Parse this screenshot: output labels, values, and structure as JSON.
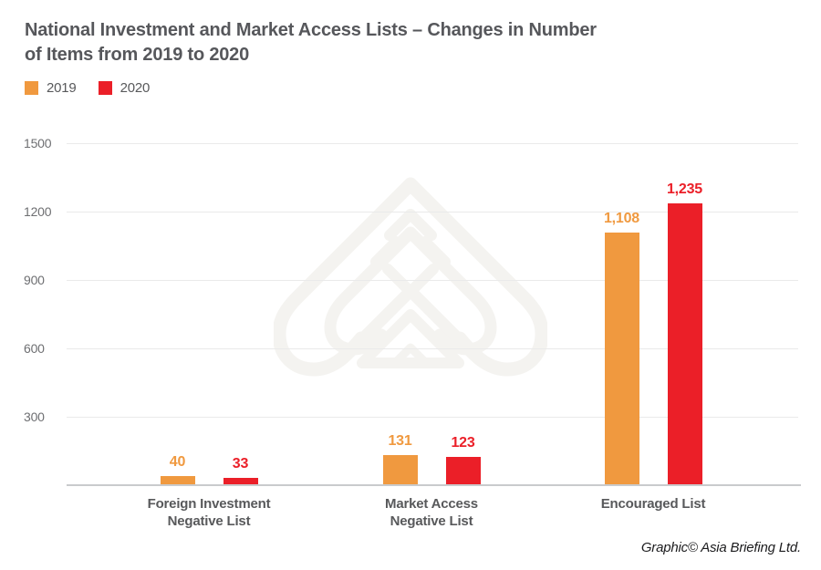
{
  "title": "National Investment and Market Access Lists – Changes in Number\nof Items from 2019 to 2020",
  "legend": {
    "items": [
      {
        "label": "2019",
        "color": "#F0993F"
      },
      {
        "label": "2020",
        "color": "#EB1F28"
      }
    ]
  },
  "chart_data": {
    "type": "bar",
    "categories": [
      "Foreign Investment\nNegative List",
      "Market Access\nNegative List",
      "Encouraged List"
    ],
    "series": [
      {
        "name": "2019",
        "color": "#F0993F",
        "values": [
          40,
          131,
          1108
        ],
        "value_labels": [
          "40",
          "131",
          "1,108"
        ]
      },
      {
        "name": "2020",
        "color": "#EB1F28",
        "values": [
          33,
          123,
          1235
        ],
        "value_labels": [
          "33",
          "123",
          "1,235"
        ]
      }
    ],
    "y_ticks": [
      300,
      600,
      900,
      1200,
      1500
    ],
    "ylim": [
      0,
      1500
    ],
    "grid": true,
    "legend_position": "top-left",
    "title": "National Investment and Market Access Lists – Changes in Number of Items from 2019 to 2020"
  },
  "colors": {
    "title_text": "#56575B",
    "axis_text": "#6E6F72",
    "category_text": "#58595B",
    "gridline": "#EAEAEA",
    "axis_line": "#C9CBCD",
    "watermark": "#F4F3F0"
  },
  "credit": "Graphic© Asia Briefing Ltd."
}
